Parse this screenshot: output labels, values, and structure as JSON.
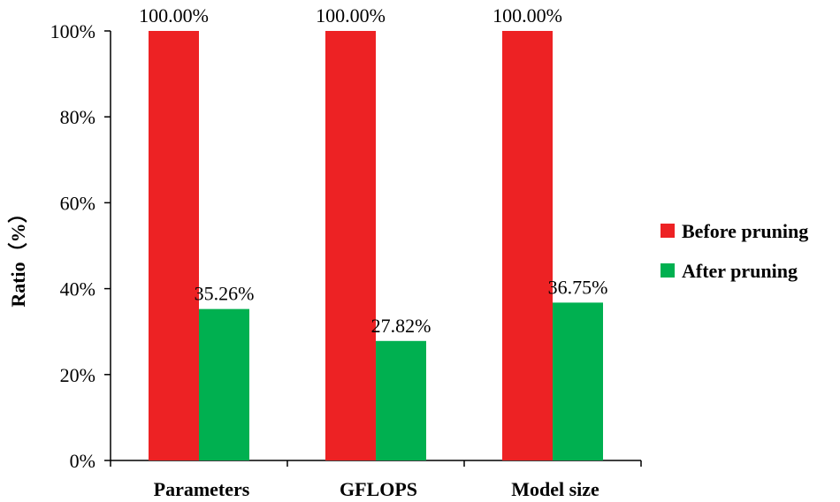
{
  "chart_data": {
    "type": "bar",
    "title": "",
    "xlabel": "",
    "ylabel": "Ratio（%）",
    "ylim": [
      0,
      100
    ],
    "yticks": [
      0,
      20,
      40,
      60,
      80,
      100
    ],
    "ytick_labels": [
      "0%",
      "20%",
      "40%",
      "60%",
      "80%",
      "100%"
    ],
    "categories": [
      "Parameters",
      "GFLOPS",
      "Model size"
    ],
    "series": [
      {
        "name": "Before pruning",
        "color": "#ED2224",
        "values": [
          100.0,
          100.0,
          100.0
        ],
        "labels": [
          "100.00%",
          "100.00%",
          "100.00%"
        ]
      },
      {
        "name": "After pruning",
        "color": "#00B050",
        "values": [
          35.26,
          27.82,
          36.75
        ],
        "labels": [
          "35.26%",
          "27.82%",
          "36.75%"
        ]
      }
    ],
    "legend_position": "right",
    "grid": false
  }
}
